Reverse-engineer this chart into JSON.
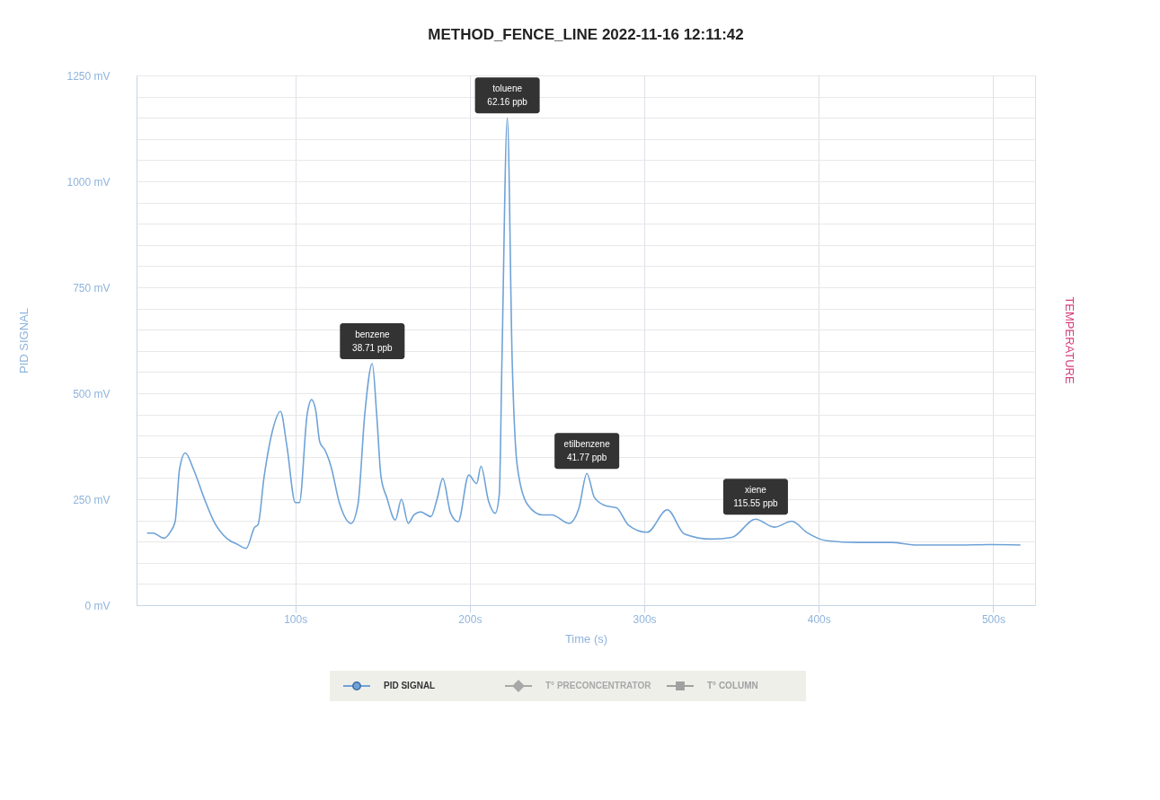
{
  "chart_data": {
    "type": "line",
    "title": "METHOD_FENCE_LINE 2022-11-16 12:11:42",
    "xlabel": "Time (s)",
    "ylabel": "PID SIGNAL",
    "y2label": "TEMPERATURE",
    "xlim": [
      9,
      524
    ],
    "xticks": [
      {
        "value": 100,
        "label": "100s"
      },
      {
        "value": 200,
        "label": "200s"
      },
      {
        "value": 300,
        "label": "300s"
      },
      {
        "value": 400,
        "label": "400s"
      },
      {
        "value": 500,
        "label": "500s"
      }
    ],
    "ylim": [
      0,
      1250
    ],
    "yticks": [
      {
        "value": 0,
        "label": "0 mV"
      },
      {
        "value": 50,
        "label": null
      },
      {
        "value": 100,
        "label": null
      },
      {
        "value": 150,
        "label": null
      },
      {
        "value": 200,
        "label": null
      },
      {
        "value": 250,
        "label": "250 mV"
      },
      {
        "value": 300,
        "label": null
      },
      {
        "value": 350,
        "label": null
      },
      {
        "value": 400,
        "label": null
      },
      {
        "value": 450,
        "label": null
      },
      {
        "value": 500,
        "label": "500 mV"
      },
      {
        "value": 550,
        "label": null
      },
      {
        "value": 600,
        "label": null
      },
      {
        "value": 650,
        "label": null
      },
      {
        "value": 700,
        "label": null
      },
      {
        "value": 750,
        "label": "750 mV"
      },
      {
        "value": 800,
        "label": null
      },
      {
        "value": 850,
        "label": null
      },
      {
        "value": 900,
        "label": null
      },
      {
        "value": 950,
        "label": null
      },
      {
        "value": 1000,
        "label": "1000 mV"
      },
      {
        "value": 1050,
        "label": null
      },
      {
        "value": 1100,
        "label": null
      },
      {
        "value": 1150,
        "label": null
      },
      {
        "value": 1200,
        "label": null
      },
      {
        "value": 1250,
        "label": "1250 mV"
      }
    ],
    "grid": true,
    "legend": "bottom",
    "line_style": "solid",
    "series": [
      {
        "name": "PID SIGNAL",
        "color": "#6fa3d8",
        "x": [
          15.0,
          18.5,
          24.7,
          28.2,
          31.1,
          33.6,
          36.9,
          41.7,
          47.6,
          53.4,
          61.2,
          67.0,
          71.8,
          76.7,
          78.6,
          82.1,
          86.8,
          91.5,
          95.1,
          100.0,
          102.3,
          106.8,
          109.3,
          111.7,
          114.0,
          117.1,
          120.4,
          125.2,
          132.0,
          135.9,
          139.8,
          144.1,
          146.6,
          149.1,
          152.4,
          157.3,
          160.8,
          164.7,
          168.0,
          171.8,
          177.7,
          181.2,
          184.5,
          189.0,
          193.3,
          199.4,
          203.9,
          206.4,
          210.7,
          214.6,
          216.9,
          218.4,
          221.5,
          224.3,
          227.2,
          233.0,
          241.7,
          247.1,
          256.8,
          262.6,
          267.1,
          271.4,
          278.2,
          284.0,
          290.9,
          301.6,
          313.2,
          323.0,
          338.5,
          350.2,
          363.8,
          374.5,
          384.6,
          393.0,
          404.7,
          422.2,
          441.6,
          455.3,
          480.5,
          498.0,
          515.6
        ],
        "values": [
          170,
          170,
          158,
          172,
          197,
          320,
          359,
          320,
          254,
          197,
          156,
          143,
          134,
          184,
          190,
          303,
          410,
          457,
          377,
          242,
          242,
          451,
          485,
          459,
          385,
          365,
          328,
          242,
          193,
          238,
          451,
          570,
          451,
          303,
          254,
          201,
          250,
          193,
          213,
          220,
          209,
          250,
          299,
          217,
          197,
          307,
          287,
          328,
          246,
          217,
          262,
          574,
          1150,
          574,
          328,
          238,
          213,
          213,
          193,
          230,
          311,
          254,
          234,
          230,
          189,
          172,
          225,
          168,
          156,
          160,
          203,
          184,
          198,
          172,
          152,
          148,
          148,
          142,
          142,
          143,
          142
        ]
      },
      {
        "name": "T° PRECONCENTRATOR",
        "color": "#a8a8a8",
        "marker": "diamond"
      },
      {
        "name": "T° COLUMN",
        "color": "#a0a0a0",
        "marker": "square"
      }
    ],
    "annotations": [
      {
        "text": "benzene\n38.71 ppb",
        "x": 144.1,
        "y": 570
      },
      {
        "text": "toluene\n62.16 ppb",
        "x": 221.5,
        "y": 1150
      },
      {
        "text": "etilbenzene\n41.77 ppb",
        "x": 267.1,
        "y": 311
      },
      {
        "text": "xiene\n115.55 ppb",
        "x": 363.8,
        "y": 203
      }
    ]
  }
}
